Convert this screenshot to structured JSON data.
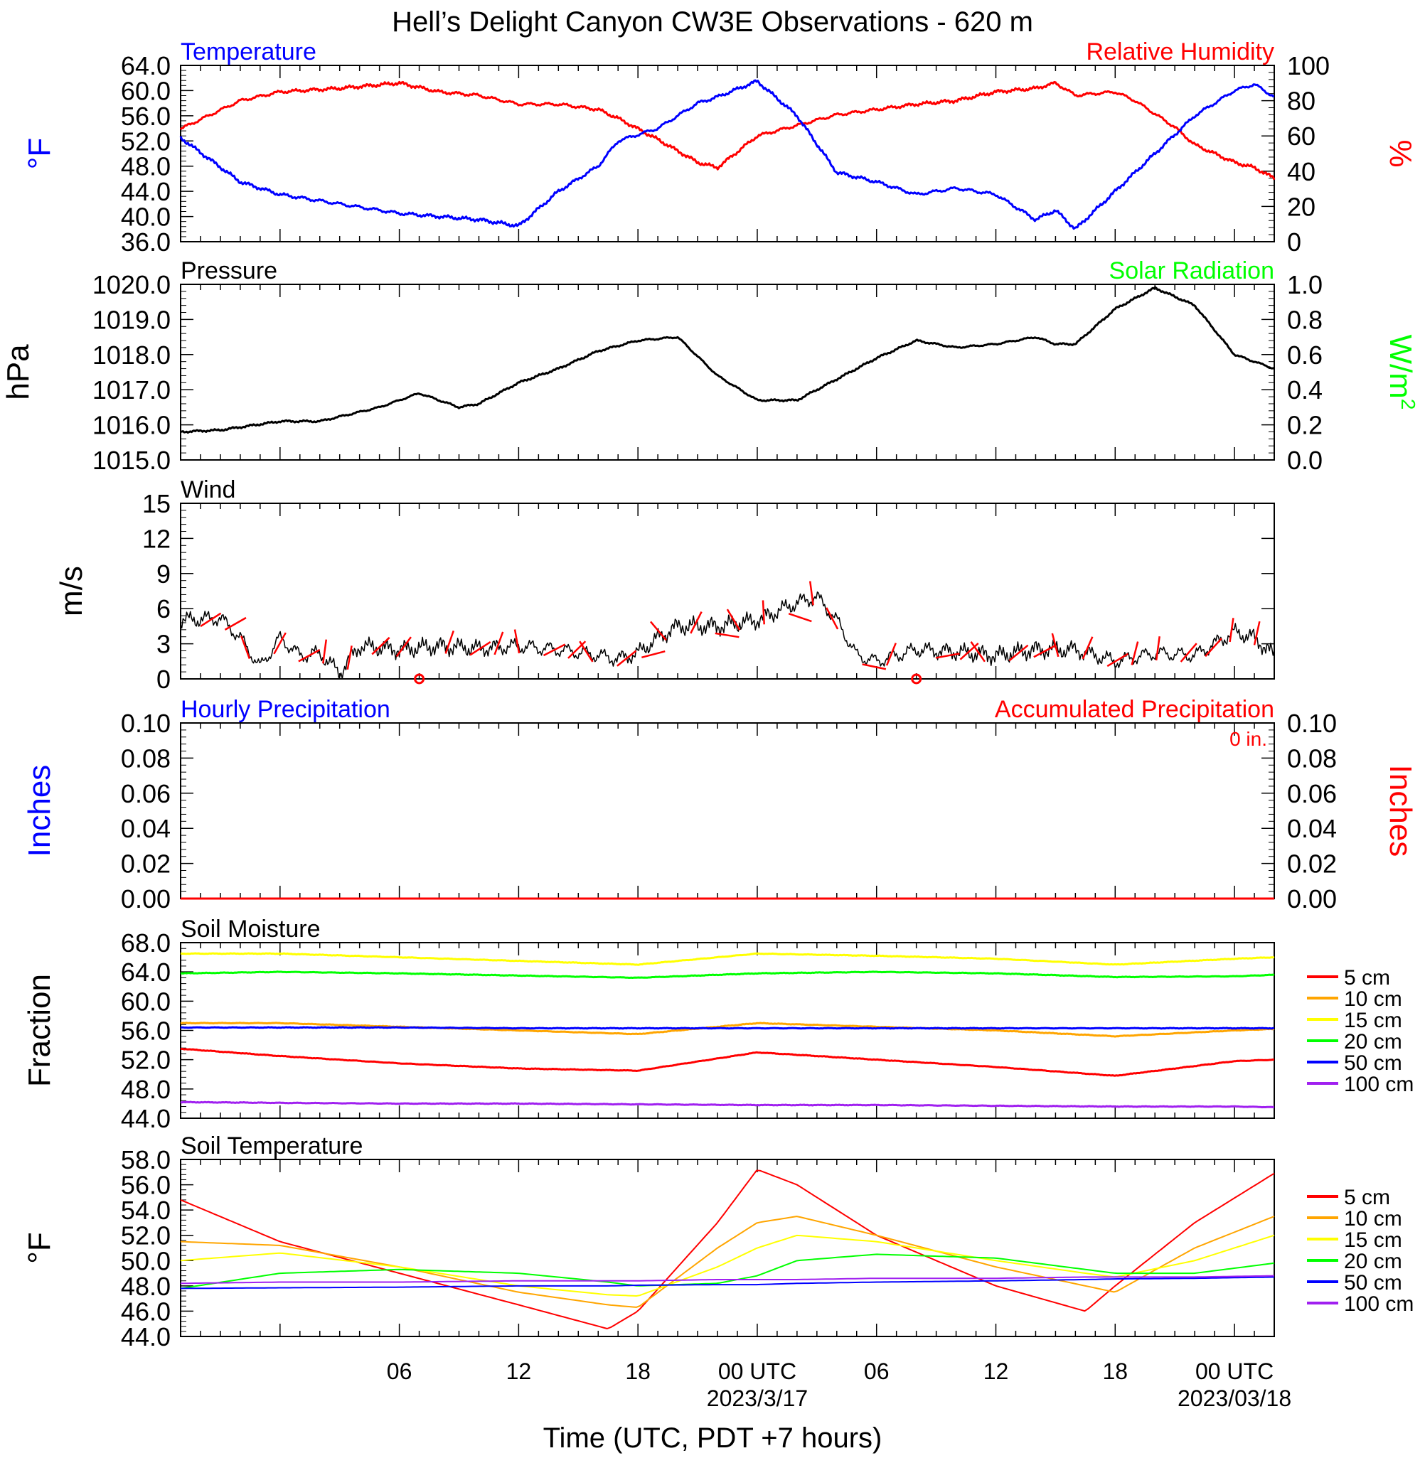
{
  "title": "Hell’s Delight Canyon CW3E Observations - 620 m",
  "colors": {
    "temperature": "#0000ff",
    "humidity": "#ff0000",
    "pressure": "#000000",
    "solar": "#00ff00",
    "wind": "#000000",
    "barb": "#ff0000",
    "precip_hourly": "#0000ff",
    "precip_accum": "#ff0000",
    "soil_5": "#ff0000",
    "soil_10": "#ffa500",
    "soil_15": "#ffff00",
    "soil_20": "#00ff00",
    "soil_50": "#0000ff",
    "soil_100": "#a020f0"
  },
  "chart_data": [
    {
      "type": "line",
      "left_title": "Temperature",
      "right_title": "Relative Humidity",
      "ylabel": "oF",
      "y2label": "%",
      "ylim": [
        36,
        64
      ],
      "y2lim": [
        0,
        100
      ],
      "yticks": [
        "64.0",
        "60.0",
        "56.0",
        "52.0",
        "48.0",
        "44.0",
        "40.0",
        "36.0"
      ],
      "y2ticks": [
        "100",
        "80",
        "60",
        "40",
        "20",
        "0"
      ],
      "x_hours": [
        -5,
        -2,
        0,
        3,
        6,
        8,
        10,
        12,
        14,
        16,
        17,
        19,
        21,
        22,
        24,
        26,
        28,
        30,
        32,
        34,
        36,
        38,
        39,
        40,
        42,
        43,
        45,
        46,
        48,
        49,
        50
      ],
      "series": [
        {
          "name": "Temperature",
          "axis": "left",
          "values": [
            52.5,
            45.5,
            43.5,
            42,
            40.5,
            40,
            39.5,
            38.5,
            44,
            48,
            52,
            54,
            58,
            59,
            61.5,
            56,
            47,
            45.5,
            43.5,
            44.5,
            43.5,
            39.5,
            41,
            38,
            44,
            47,
            53,
            56,
            60,
            61,
            59
          ]
        },
        {
          "name": "Relative Humidity",
          "axis": "right",
          "values": [
            64,
            80,
            85,
            87,
            90,
            85,
            83,
            78,
            78,
            75,
            70,
            58,
            45,
            42,
            60,
            66,
            72,
            75,
            78,
            80,
            85,
            87,
            90,
            83,
            85,
            80,
            65,
            55,
            45,
            42,
            36
          ]
        }
      ]
    },
    {
      "type": "line",
      "left_title": "Pressure",
      "right_title": "Solar Radiation",
      "ylabel": "hPa",
      "y2label": "W/m²",
      "ylim": [
        1015,
        1020
      ],
      "y2lim": [
        0,
        1
      ],
      "yticks": [
        "1020.0",
        "1019.0",
        "1018.0",
        "1017.0",
        "1016.0",
        "1015.0"
      ],
      "y2ticks": [
        "1.0",
        "0.8",
        "0.6",
        "0.4",
        "0.2",
        "0.0"
      ],
      "x_hours": [
        -5,
        -3,
        0,
        2,
        5,
        7,
        9,
        10,
        12,
        14,
        16,
        18,
        20,
        22,
        24,
        26,
        28,
        30,
        32,
        34,
        36,
        38,
        39,
        40,
        41,
        42,
        44,
        46,
        48,
        50
      ],
      "series": [
        {
          "name": "Pressure",
          "values": [
            1015.8,
            1015.85,
            1016.1,
            1016.1,
            1016.5,
            1016.9,
            1016.5,
            1016.6,
            1017.2,
            1017.6,
            1018.1,
            1018.4,
            1018.5,
            1017.4,
            1016.7,
            1016.7,
            1017.3,
            1017.9,
            1018.4,
            1018.2,
            1018.3,
            1018.5,
            1018.3,
            1018.3,
            1018.8,
            1019.3,
            1019.9,
            1019.4,
            1018.0,
            1017.6
          ]
        },
        {
          "name": "Solar Radiation",
          "values": [
            0,
            0,
            0,
            0,
            0,
            0,
            0,
            0,
            0,
            0,
            0,
            0,
            0,
            0,
            0,
            0,
            0,
            0,
            0,
            0,
            0,
            0,
            0,
            0,
            0,
            0,
            0,
            0,
            0,
            0
          ]
        }
      ]
    },
    {
      "type": "line",
      "left_title": "Wind",
      "ylabel": "m/s",
      "ylim": [
        0,
        15
      ],
      "yticks": [
        "15",
        "12",
        "9",
        "6",
        "3",
        "0"
      ],
      "x_hours": [
        -5,
        -3,
        -2,
        -1,
        0,
        1,
        2,
        3,
        4,
        6,
        8,
        10,
        12,
        14,
        16,
        17,
        18,
        19,
        20,
        22,
        24,
        26,
        27,
        28,
        29,
        30,
        32,
        34,
        36,
        38,
        40,
        42,
        44,
        46,
        47,
        48,
        49,
        50
      ],
      "series": [
        {
          "name": "Wind Speed",
          "values": [
            5,
            5.2,
            3.5,
            1,
            3.5,
            2,
            2.2,
            0.5,
            2.8,
            2.5,
            2.8,
            2.6,
            2.8,
            2.5,
            2,
            1.7,
            2.2,
            3.5,
            4.5,
            4.5,
            5,
            6.5,
            7,
            5,
            2,
            1.5,
            2.5,
            2.3,
            2,
            2.5,
            2.5,
            1.5,
            2.2,
            2,
            3,
            4,
            3.5,
            2
          ]
        }
      ],
      "barbs_count": 44,
      "calm_markers_hours": [
        7,
        32
      ]
    },
    {
      "type": "line",
      "left_title": "Hourly Precipitation",
      "right_title": "Accumulated Precipitation",
      "annotation": "0 in.",
      "ylabel": "Inches",
      "y2label": "Inches",
      "ylim": [
        0,
        0.1
      ],
      "y2lim": [
        0,
        0.1
      ],
      "yticks": [
        "0.10",
        "0.08",
        "0.06",
        "0.04",
        "0.02",
        "0.00"
      ],
      "y2ticks": [
        "0.10",
        "0.08",
        "0.06",
        "0.04",
        "0.02",
        "0.00"
      ],
      "x_hours": [
        -5,
        50
      ],
      "series": [
        {
          "name": "Hourly Precipitation",
          "values": [
            0,
            0
          ]
        },
        {
          "name": "Accumulated Precipitation",
          "values": [
            0,
            0
          ]
        }
      ]
    },
    {
      "type": "line",
      "left_title": "Soil Moisture",
      "ylabel": "Fraction",
      "ylim": [
        44,
        68
      ],
      "yticks": [
        "68.0",
        "64.0",
        "60.0",
        "56.0",
        "52.0",
        "48.0",
        "44.0"
      ],
      "x_hours": [
        -5,
        0,
        6,
        12,
        18,
        24,
        30,
        36,
        42,
        48,
        50
      ],
      "series": [
        {
          "name": "5 cm",
          "values": [
            53.5,
            52.5,
            51.5,
            50.8,
            50.5,
            53,
            52,
            51,
            49.8,
            51.8,
            52
          ]
        },
        {
          "name": "10 cm",
          "values": [
            57,
            57,
            56.5,
            56,
            55.5,
            57,
            56.5,
            56,
            55.2,
            56,
            56.2
          ]
        },
        {
          "name": "15 cm",
          "values": [
            66.5,
            66.5,
            66,
            65.5,
            65,
            66.5,
            66.2,
            65.8,
            65,
            65.8,
            66
          ]
        },
        {
          "name": "20 cm",
          "values": [
            63.8,
            64,
            63.8,
            63.5,
            63.2,
            63.8,
            64,
            63.8,
            63.3,
            63.4,
            63.6
          ]
        },
        {
          "name": "50 cm",
          "values": [
            56.4,
            56.4,
            56.4,
            56.3,
            56.3,
            56.3,
            56.3,
            56.3,
            56.3,
            56.3,
            56.3
          ]
        },
        {
          "name": "100 cm",
          "values": [
            46.2,
            46.1,
            46,
            46,
            45.9,
            45.8,
            45.8,
            45.7,
            45.6,
            45.6,
            45.5
          ]
        }
      ],
      "legend": [
        "5 cm",
        "10 cm",
        "15 cm",
        "20 cm",
        "50 cm",
        "100 cm"
      ]
    },
    {
      "type": "line",
      "left_title": "Soil Temperature",
      "ylabel": "oF",
      "ylim": [
        44,
        58
      ],
      "yticks": [
        "58.0",
        "56.0",
        "54.0",
        "52.0",
        "50.0",
        "48.0",
        "46.0",
        "44.0"
      ],
      "x_hours": [
        -5,
        0,
        6,
        12,
        16.5,
        18,
        22,
        24,
        26,
        30,
        36,
        40.5,
        42,
        46,
        50
      ],
      "series": [
        {
          "name": "5 cm",
          "values": [
            54.8,
            51.5,
            49,
            46.5,
            44.6,
            46,
            53,
            57.2,
            56,
            52,
            48,
            46,
            48,
            53,
            56.9
          ]
        },
        {
          "name": "10 cm",
          "values": [
            51.5,
            51.2,
            49.5,
            47.5,
            46.5,
            46.3,
            51,
            53,
            53.5,
            52,
            49.5,
            48,
            47.5,
            51,
            53.5
          ]
        },
        {
          "name": "15 cm",
          "values": [
            50,
            50.6,
            49.5,
            48,
            47.3,
            47.2,
            49.5,
            51,
            52,
            51.5,
            50,
            49,
            48.7,
            50,
            52
          ]
        },
        {
          "name": "20 cm",
          "values": [
            47.8,
            49,
            49.3,
            49,
            48.3,
            48,
            48.2,
            48.8,
            50,
            50.5,
            50.2,
            49.3,
            49,
            49,
            49.8
          ]
        },
        {
          "name": "50 cm",
          "values": [
            47.8,
            47.85,
            47.9,
            48,
            48,
            48.05,
            48.1,
            48.1,
            48.2,
            48.3,
            48.4,
            48.5,
            48.55,
            48.6,
            48.7
          ]
        },
        {
          "name": "100 cm",
          "values": [
            48.2,
            48.3,
            48.3,
            48.4,
            48.4,
            48.4,
            48.5,
            48.5,
            48.5,
            48.6,
            48.6,
            48.7,
            48.7,
            48.7,
            48.8
          ]
        }
      ],
      "legend": [
        "5 cm",
        "10 cm",
        "15 cm",
        "20 cm",
        "50 cm",
        "100 cm"
      ]
    }
  ],
  "x_axis": {
    "tick_labels": [
      "06",
      "12",
      "18",
      "00 UTC",
      "06",
      "12",
      "18",
      "00 UTC"
    ],
    "tick_hours": [
      6,
      12,
      18,
      24,
      30,
      36,
      42,
      48
    ],
    "date_labels": [
      {
        "hour": 24,
        "text": "2023/3/17"
      },
      {
        "hour": 48,
        "text": "2023/03/18"
      }
    ],
    "xlabel": "Time (UTC, PDT +7 hours)",
    "range_hours": [
      -5,
      50
    ]
  }
}
